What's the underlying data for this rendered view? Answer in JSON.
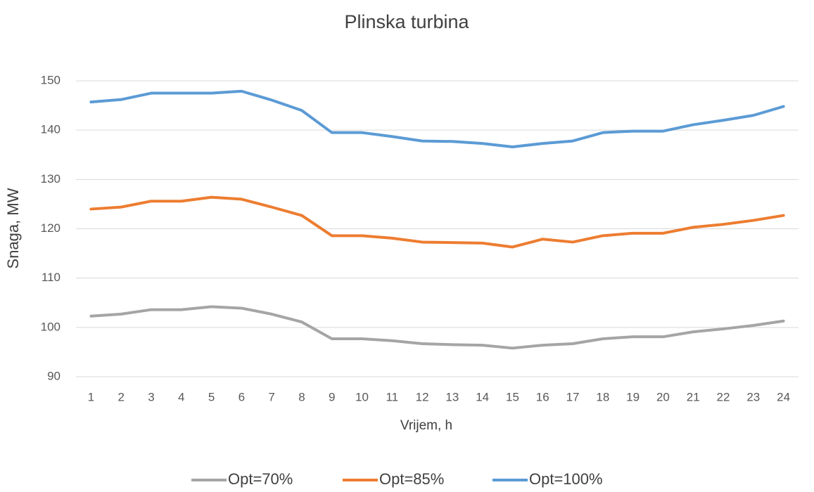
{
  "chart_data": {
    "type": "line",
    "title": "Plinska turbina",
    "x_label": "Vrijem, h",
    "y_label": "Snaga, MW",
    "categories": [
      "1",
      "2",
      "3",
      "4",
      "5",
      "6",
      "7",
      "8",
      "9",
      "10",
      "11",
      "12",
      "13",
      "14",
      "15",
      "16",
      "17",
      "18",
      "19",
      "20",
      "21",
      "22",
      "23",
      "24"
    ],
    "series": [
      {
        "name": "Opt=70%",
        "color": "#a5a5a5",
        "values": [
          102.3,
          102.7,
          103.6,
          103.6,
          104.2,
          103.9,
          102.7,
          101.1,
          97.7,
          97.7,
          97.3,
          96.7,
          96.5,
          96.4,
          95.8,
          96.4,
          96.7,
          97.7,
          98.1,
          98.1,
          99.1,
          99.7,
          100.4,
          101.3
        ]
      },
      {
        "name": "Opt=85%",
        "color": "#ed7d31",
        "values": [
          124.0,
          124.4,
          125.6,
          125.6,
          126.4,
          126.0,
          124.4,
          122.7,
          118.6,
          118.6,
          118.1,
          117.3,
          117.2,
          117.1,
          116.3,
          117.9,
          117.3,
          118.6,
          119.1,
          119.1,
          120.3,
          120.9,
          121.7,
          122.7
        ]
      },
      {
        "name": "Opt=100%",
        "color": "#5b9bd5",
        "values": [
          145.7,
          146.2,
          147.5,
          147.5,
          147.5,
          147.9,
          146.1,
          144.0,
          139.5,
          139.5,
          138.7,
          137.8,
          137.7,
          137.3,
          136.6,
          137.3,
          137.8,
          139.5,
          139.8,
          139.8,
          141.1,
          142.0,
          143.0,
          144.8
        ]
      }
    ],
    "ylim": [
      90,
      150
    ],
    "yticks": [
      90,
      100,
      110,
      120,
      130,
      140,
      150
    ],
    "grid": true,
    "legend": "bottom"
  }
}
